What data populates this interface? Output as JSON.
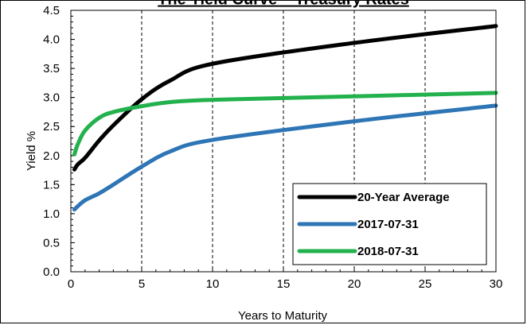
{
  "chart_data": {
    "type": "line",
    "title": "The Yield Curve – Treasury Rates",
    "xlabel": "Years to Maturity",
    "ylabel": "Yield %",
    "xlim": [
      0,
      30
    ],
    "ylim": [
      0.0,
      4.5
    ],
    "x_ticks": [
      "0",
      "5",
      "10",
      "15",
      "20",
      "25",
      "30"
    ],
    "y_ticks": [
      "0.0",
      "0.5",
      "1.0",
      "1.5",
      "2.0",
      "2.5",
      "3.0",
      "3.5",
      "4.0",
      "4.5"
    ],
    "grid": "vertical dashed",
    "legend_position": "bottom-right",
    "series": [
      {
        "name": "20-Year Average",
        "color": "#000000",
        "x": [
          0.25,
          0.5,
          1,
          2,
          3,
          5,
          7,
          10,
          20,
          30
        ],
        "values": [
          1.76,
          1.85,
          1.96,
          2.26,
          2.52,
          2.97,
          3.29,
          3.58,
          3.94,
          4.23
        ]
      },
      {
        "name": "2017-07-31",
        "color": "#2E75B6",
        "x": [
          0.25,
          0.5,
          1,
          2,
          3,
          5,
          7,
          10,
          20,
          30
        ],
        "values": [
          1.07,
          1.13,
          1.23,
          1.35,
          1.5,
          1.81,
          2.07,
          2.27,
          2.59,
          2.86
        ]
      },
      {
        "name": "2018-07-31",
        "color": "#22B14C",
        "x": [
          0.25,
          0.5,
          1,
          2,
          3,
          5,
          7,
          10,
          20,
          30
        ],
        "values": [
          2.02,
          2.2,
          2.43,
          2.65,
          2.75,
          2.85,
          2.92,
          2.96,
          3.02,
          3.08
        ]
      }
    ]
  }
}
